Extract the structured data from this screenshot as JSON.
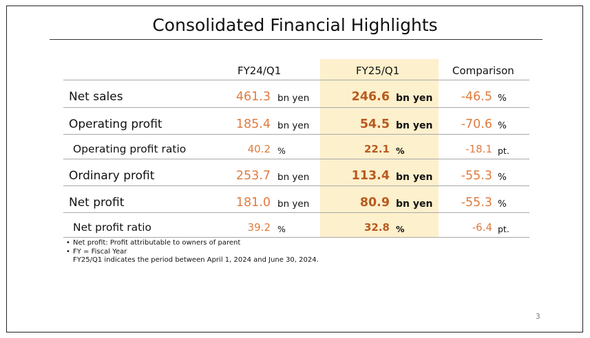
{
  "title": "Consolidated Financial Highlights",
  "headers": {
    "prev": "FY24/Q1",
    "curr": "FY25/Q1",
    "comp": "Comparison"
  },
  "rows": [
    {
      "label": "Net sales",
      "prev": "461.3",
      "prev_unit": "bn yen",
      "curr": "246.6",
      "curr_unit": "bn yen",
      "comp": "-46.5",
      "comp_unit": "%"
    },
    {
      "label": "Operating profit",
      "prev": "185.4",
      "prev_unit": "bn yen",
      "curr": "54.5",
      "curr_unit": "bn yen",
      "comp": "-70.6",
      "comp_unit": "%"
    },
    {
      "label": "Operating profit ratio",
      "prev": "40.2",
      "prev_unit": "%",
      "curr": "22.1",
      "curr_unit": "%",
      "comp": "-18.1",
      "comp_unit": "pt."
    },
    {
      "label": "Ordinary profit",
      "prev": "253.7",
      "prev_unit": "bn yen",
      "curr": "113.4",
      "curr_unit": "bn yen",
      "comp": "-55.3",
      "comp_unit": "%"
    },
    {
      "label": "Net profit",
      "prev": "181.0",
      "prev_unit": "bn yen",
      "curr": "80.9",
      "curr_unit": "bn yen",
      "comp": "-55.3",
      "comp_unit": "%"
    },
    {
      "label": "Net profit ratio",
      "prev": "39.2",
      "prev_unit": "%",
      "curr": "32.8",
      "curr_unit": "%",
      "comp": "-6.4",
      "comp_unit": "pt."
    }
  ],
  "notes": [
    "Net profit: Profit attributable to owners of parent",
    "FY = Fiscal Year",
    "FY25/Q1 indicates the period between April 1, 2024 and June 30, 2024."
  ],
  "page_number": "3",
  "colors": {
    "prev_value": "#e07b3f",
    "curr_value": "#b85a1f",
    "highlight": "#fdf0cc"
  }
}
